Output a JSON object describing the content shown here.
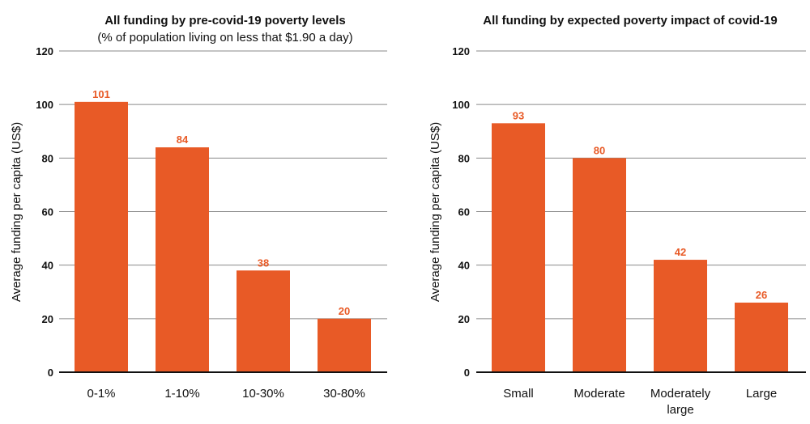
{
  "chart_data": [
    {
      "type": "bar",
      "title": "All funding by pre-covid-19 poverty levels",
      "subtitle": "(% of population living on less that $1.90 a day)",
      "xlabel": "",
      "ylabel": "Average funding per capita (US$)",
      "categories": [
        "0-1%",
        "1-10%",
        "10-30%",
        "30-80%"
      ],
      "values": [
        101,
        84,
        38,
        20
      ],
      "data_labels": [
        "101",
        "84",
        "38",
        "20"
      ],
      "ylim": [
        0,
        120
      ],
      "yticks": [
        "0",
        "20",
        "40",
        "60",
        "80",
        "100",
        "120"
      ],
      "grid": true
    },
    {
      "type": "bar",
      "title": "All funding by expected poverty impact of covid-19",
      "xlabel": "",
      "ylabel": "Average funding per capita (US$)",
      "categories": [
        "Small",
        "Moderate",
        "Moderately large",
        "Large"
      ],
      "values": [
        93,
        80,
        42,
        26
      ],
      "data_labels": [
        "93",
        "80",
        "42",
        "26"
      ],
      "ylim": [
        0,
        120
      ],
      "yticks": [
        "0",
        "20",
        "40",
        "60",
        "80",
        "100",
        "120"
      ],
      "grid": true
    }
  ],
  "colors": {
    "bar": "#e85a26",
    "label": "#e85a26",
    "grid": "#8a8a8a",
    "axis": "#111111",
    "text": "#111111"
  }
}
